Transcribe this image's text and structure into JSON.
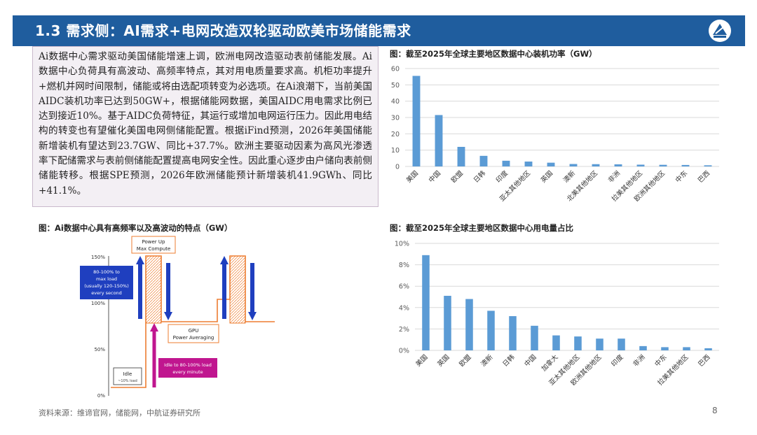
{
  "header": {
    "title": "1.3 需求侧：AI需求+电网改造双轮驱动欧美市场储能需求"
  },
  "textbox": {
    "paragraph": "Ai数据中心需求驱动美国储能增速上调，欧洲电网改造驱动表前储能发展。Ai数据中心负荷具有高波动、高频率特点，其对用电质量要求高。机柜功率提升+燃机并网时间限制，储能或将由选配项转变为必选项。在Ai浪潮下，当前美国AIDC装机功率已达到50GW+，根据储能网数据，美国AIDC用电需求比例已达到接近10%。基于AIDC负荷特征，其运行或增加电网运行压力。因此用电结构的转变也有望催化美国电网侧储能配置。根据iFind预测，2026年美国储能新增装机有望达到23.7GW、同比+37.7%。欧洲主要驱动因素为高风光渗透率下配储需求与表前侧储能配置提高电网安全性。因此重心逐步由户储向表前侧储能转移。根据SPE预测，2026年欧洲储能预计新增装机41.9GWh、同比+41.1%。"
  },
  "fig1": {
    "title": "图：截至2025年全球主要地区数据中心装机功率（GW）"
  },
  "fig2": {
    "title": "图：Ai数据中心具有高频率以及高波动的特点（GW）",
    "labels": {
      "power_up": "Power Up",
      "max_compute": "Max Compute",
      "load_1": "80-100% to",
      "load_2": "max load",
      "load_3": "(usually 120-150%)",
      "load_4": "every second",
      "gpu": "GPU",
      "power_avg": "Power Averaging",
      "idle": "Idle",
      "idle_sub": "~10% load",
      "idle_to_1": "Idle to 80-100% load",
      "idle_to_2": "every minute"
    },
    "ticks": [
      "150%",
      "100%",
      "50%",
      "0%"
    ]
  },
  "fig3": {
    "title": "图：截至2025年全球主要地区数据中心用电量占比"
  },
  "footer": {
    "source": "资料来源：维谛官网，储能网，中航证券研究所",
    "page": "8"
  },
  "colors": {
    "header": "#1f5d9e",
    "bar": "#5b9bd5",
    "orange": "#ed7d31",
    "magenta": "#c0168f",
    "navy": "#1f3fbf"
  },
  "chart_data": [
    {
      "type": "bar",
      "categories": [
        "美国",
        "中国",
        "欧盟",
        "日韩",
        "印度",
        "亚太其他地区",
        "英国",
        "澳新",
        "北美其他地区",
        "非洲",
        "拉美其他地区",
        "欧洲其他地区",
        "中东",
        "巴西"
      ],
      "values": [
        55.5,
        31.5,
        12,
        6.5,
        3.5,
        3,
        2.3,
        1.5,
        1.4,
        1.3,
        1.1,
        1.0,
        0.9,
        0.7
      ],
      "ylim": [
        0,
        60
      ],
      "yticks": [
        "0",
        "10",
        "20",
        "30",
        "40",
        "50",
        "60"
      ]
    },
    {
      "type": "bar",
      "categories": [
        "美国",
        "英国",
        "欧盟",
        "澳新",
        "日韩",
        "中国",
        "加拿大",
        "亚太其他地区",
        "欧洲其他地区",
        "印度",
        "非洲",
        "中东",
        "拉美其他地区",
        "巴西"
      ],
      "values": [
        8.9,
        5.1,
        4.8,
        3.7,
        3.2,
        2.3,
        1.4,
        1.3,
        1.1,
        1.1,
        0.4,
        0.3,
        0.3,
        0.2
      ],
      "ylim": [
        0,
        10
      ],
      "yticks": [
        "0%",
        "2%",
        "4%",
        "6%",
        "8%",
        "10%"
      ]
    }
  ]
}
